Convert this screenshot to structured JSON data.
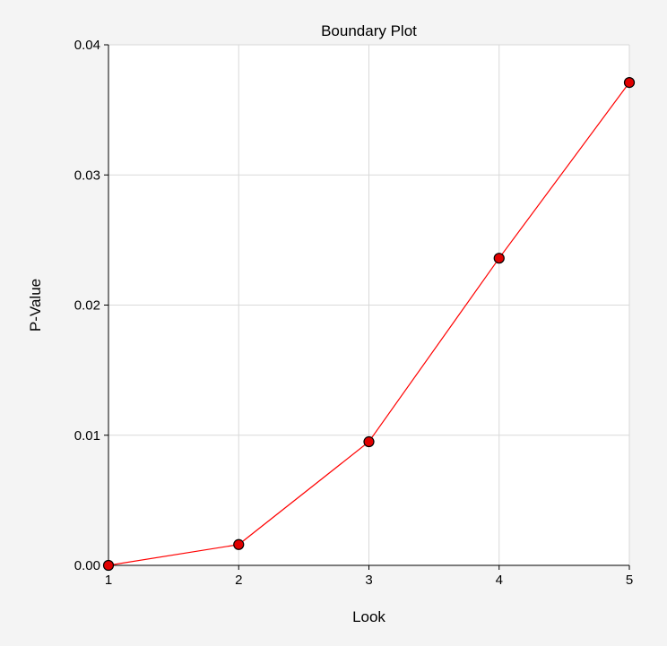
{
  "chart_data": {
    "type": "line",
    "title": "Boundary Plot",
    "xlabel": "Look",
    "ylabel": "P-Value",
    "x": [
      1,
      2,
      3,
      4,
      5
    ],
    "series": [
      {
        "values": [
          0.0,
          0.0016,
          0.0095,
          0.0236,
          0.0371
        ]
      }
    ],
    "xlim": [
      1,
      5
    ],
    "ylim": [
      0,
      0.04
    ],
    "x_ticks": [
      "1",
      "2",
      "3",
      "4",
      "5"
    ],
    "y_ticks": [
      "0.00",
      "0.01",
      "0.02",
      "0.03",
      "0.04"
    ],
    "grid": true,
    "line_color": "#ff0000",
    "marker_fill": "#e00000",
    "marker_edge": "#000000",
    "grid_color": "#d9d9d9",
    "plot_background": "#ffffff",
    "background": "#f4f4f4"
  }
}
